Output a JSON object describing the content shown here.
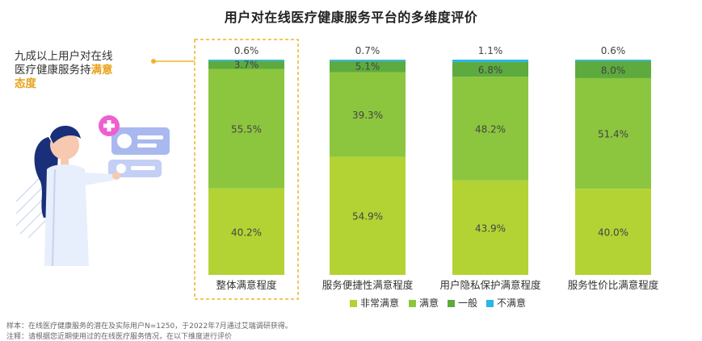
{
  "title": "用户对在线医疗健康服务平台的多维度评价",
  "callout": {
    "line1": "九成以上用户对在线",
    "line2_normal": "医疗健康服务持",
    "line2_highlight": "满意",
    "line3_highlight": "态度"
  },
  "footnotes": [
    "样本：在线医疗健康服务的潜在及实际用户N=1250，于2022年7月通过艾瑞调研获得。",
    "注释：请根据您近期使用过的在线医疗服务情况，在以下维度进行评价"
  ],
  "chart_data": {
    "type": "bar",
    "stacked": true,
    "percent": true,
    "categories": [
      "整体满意程度",
      "服务便捷性满意程度",
      "用户隐私保护满意程度",
      "服务性价比满意程度"
    ],
    "series": [
      {
        "name": "非常满意",
        "color": "#b3d334",
        "values": [
          40.2,
          54.9,
          43.9,
          40.0
        ]
      },
      {
        "name": "满意",
        "color": "#8cc63e",
        "values": [
          55.5,
          39.3,
          48.2,
          51.4
        ]
      },
      {
        "name": "一般",
        "color": "#5dab3f",
        "values": [
          3.7,
          5.1,
          6.8,
          8.0
        ]
      },
      {
        "name": "不满意",
        "color": "#29b6e8",
        "values": [
          0.6,
          0.7,
          1.1,
          0.6
        ]
      }
    ],
    "ylim": [
      0,
      100
    ],
    "legend_position": "bottom-right",
    "highlight_category": "整体满意程度",
    "highlight_color": "#f0b429"
  }
}
